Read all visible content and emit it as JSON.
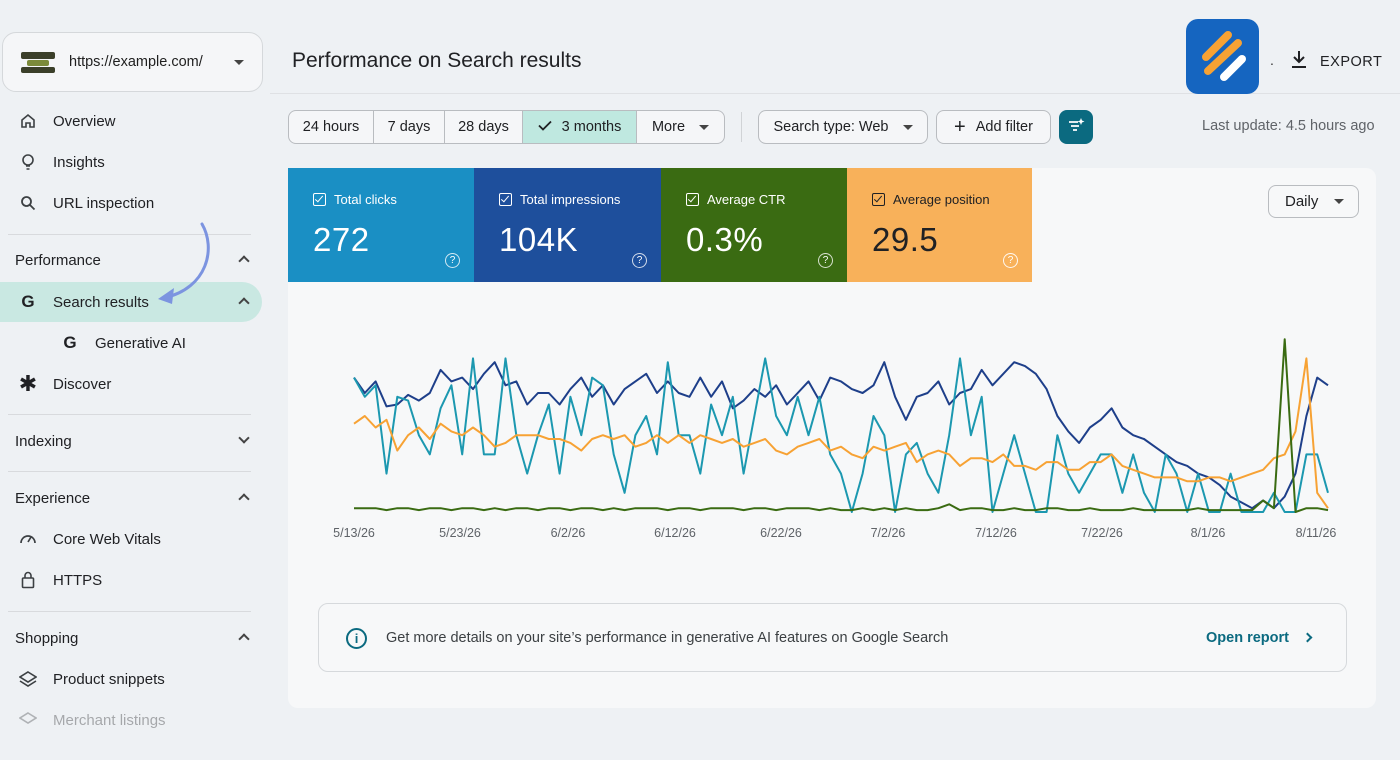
{
  "property": {
    "url": "https://example.com/"
  },
  "sidebar": {
    "items": [
      {
        "label": "Overview",
        "icon": "home-icon"
      },
      {
        "label": "Insights",
        "icon": "lightbulb-icon"
      },
      {
        "label": "URL inspection",
        "icon": "search-icon"
      }
    ],
    "sections": [
      {
        "label": "Performance",
        "expanded": true
      },
      {
        "label": "Indexing",
        "expanded": false
      },
      {
        "label": "Experience",
        "expanded": true
      },
      {
        "label": "Shopping",
        "expanded": true
      }
    ],
    "performance_items": [
      {
        "label": "Search results",
        "icon": "google-g-icon",
        "active": true
      },
      {
        "label": "Generative AI",
        "icon": "google-g-icon"
      },
      {
        "label": "Discover",
        "icon": "asterisk-icon"
      }
    ],
    "experience_items": [
      {
        "label": "Core Web Vitals",
        "icon": "gauge-icon"
      },
      {
        "label": "HTTPS",
        "icon": "lock-icon"
      }
    ],
    "shopping_items": [
      {
        "label": "Product snippets",
        "icon": "layers-icon"
      },
      {
        "label": "Merchant listings",
        "icon": "layers-icon"
      }
    ]
  },
  "header": {
    "title": "Performance on Search results",
    "export_label": "EXPORT",
    "separator": "."
  },
  "toolbar": {
    "ranges": [
      "24 hours",
      "7 days",
      "28 days",
      "3 months",
      "More"
    ],
    "selected_range": "3 months",
    "search_type": "Search type: Web",
    "add_filter": "Add filter",
    "last_update": "Last update: 4.5 hours ago"
  },
  "metrics": [
    {
      "label": "Total clicks",
      "value": "272",
      "color": "#1a8fc4"
    },
    {
      "label": "Total impressions",
      "value": "104K",
      "color": "#1e4f9c"
    },
    {
      "label": "Average CTR",
      "value": "0.3%",
      "color": "#3a6b12"
    },
    {
      "label": "Average position",
      "value": "29.5",
      "color": "#f8b15a"
    }
  ],
  "granularity": "Daily",
  "chart_data": {
    "type": "line",
    "x_ticks": [
      "5/13/26",
      "5/23/26",
      "6/2/26",
      "6/12/26",
      "6/22/26",
      "7/2/26",
      "7/12/26",
      "7/22/26",
      "8/1/26",
      "8/11/26"
    ],
    "x_range": [
      "5/13/26",
      "8/13/26"
    ],
    "grid": false,
    "y_axis_labels": false,
    "series": [
      {
        "name": "Total impressions",
        "color": "#1e3f8a",
        "values": [
          0.7,
          0.62,
          0.68,
          0.55,
          0.56,
          0.61,
          0.58,
          0.62,
          0.74,
          0.68,
          0.7,
          0.64,
          0.72,
          0.78,
          0.66,
          0.68,
          0.56,
          0.62,
          0.62,
          0.56,
          0.64,
          0.7,
          0.6,
          0.66,
          0.56,
          0.64,
          0.68,
          0.72,
          0.62,
          0.68,
          0.62,
          0.6,
          0.7,
          0.6,
          0.68,
          0.54,
          0.58,
          0.64,
          0.6,
          0.66,
          0.56,
          0.62,
          0.68,
          0.58,
          0.7,
          0.68,
          0.64,
          0.62,
          0.66,
          0.78,
          0.6,
          0.48,
          0.6,
          0.62,
          0.68,
          0.56,
          0.62,
          0.64,
          0.74,
          0.66,
          0.72,
          0.78,
          0.76,
          0.72,
          0.64,
          0.5,
          0.42,
          0.36,
          0.44,
          0.48,
          0.54,
          0.44,
          0.4,
          0.38,
          0.34,
          0.3,
          0.26,
          0.24,
          0.2,
          0.18,
          0.14,
          0.08,
          0.05,
          0.02,
          0.06,
          0.02,
          0.08,
          0.2,
          0.5,
          0.7,
          0.66
        ]
      },
      {
        "name": "Total clicks",
        "color": "#1c98b0",
        "values": [
          0.7,
          0.6,
          0.66,
          0.2,
          0.6,
          0.58,
          0.4,
          0.3,
          0.54,
          0.66,
          0.3,
          0.8,
          0.3,
          0.3,
          0.8,
          0.4,
          0.2,
          0.4,
          0.56,
          0.2,
          0.6,
          0.4,
          0.7,
          0.66,
          0.3,
          0.1,
          0.4,
          0.5,
          0.3,
          0.78,
          0.4,
          0.4,
          0.2,
          0.56,
          0.4,
          0.6,
          0.2,
          0.5,
          0.8,
          0.5,
          0.4,
          0.6,
          0.4,
          0.6,
          0.3,
          0.2,
          0.0,
          0.2,
          0.5,
          0.4,
          0.0,
          0.3,
          0.36,
          0.2,
          0.1,
          0.4,
          0.8,
          0.4,
          0.6,
          0.0,
          0.2,
          0.4,
          0.2,
          0.0,
          0.0,
          0.4,
          0.2,
          0.1,
          0.2,
          0.3,
          0.3,
          0.1,
          0.3,
          0.1,
          0.0,
          0.3,
          0.2,
          0.0,
          0.2,
          0.0,
          0.0,
          0.2,
          0.0,
          0.0,
          0.0,
          0.1,
          0.0,
          0.0,
          0.3,
          0.3,
          0.1
        ]
      },
      {
        "name": "Average position",
        "color": "#f7a234",
        "values": [
          0.46,
          0.5,
          0.44,
          0.48,
          0.32,
          0.4,
          0.44,
          0.38,
          0.46,
          0.42,
          0.4,
          0.44,
          0.4,
          0.34,
          0.36,
          0.4,
          0.4,
          0.4,
          0.38,
          0.38,
          0.36,
          0.32,
          0.38,
          0.4,
          0.38,
          0.4,
          0.34,
          0.36,
          0.4,
          0.36,
          0.4,
          0.36,
          0.4,
          0.38,
          0.36,
          0.38,
          0.34,
          0.36,
          0.38,
          0.32,
          0.3,
          0.34,
          0.36,
          0.38,
          0.32,
          0.34,
          0.3,
          0.28,
          0.34,
          0.32,
          0.34,
          0.36,
          0.26,
          0.3,
          0.32,
          0.3,
          0.24,
          0.28,
          0.28,
          0.26,
          0.3,
          0.24,
          0.24,
          0.22,
          0.26,
          0.26,
          0.22,
          0.22,
          0.26,
          0.26,
          0.3,
          0.24,
          0.22,
          0.2,
          0.18,
          0.18,
          0.18,
          0.16,
          0.16,
          0.18,
          0.18,
          0.16,
          0.18,
          0.2,
          0.22,
          0.28,
          0.3,
          0.42,
          0.8,
          0.1,
          0.02
        ]
      },
      {
        "name": "Average CTR",
        "color": "#3a6b12",
        "values": [
          0.02,
          0.02,
          0.02,
          0.01,
          0.02,
          0.02,
          0.01,
          0.02,
          0.02,
          0.01,
          0.02,
          0.02,
          0.01,
          0.02,
          0.01,
          0.02,
          0.02,
          0.01,
          0.02,
          0.02,
          0.01,
          0.02,
          0.02,
          0.01,
          0.02,
          0.01,
          0.02,
          0.02,
          0.02,
          0.01,
          0.02,
          0.02,
          0.01,
          0.02,
          0.02,
          0.02,
          0.01,
          0.02,
          0.02,
          0.01,
          0.02,
          0.02,
          0.02,
          0.01,
          0.02,
          0.01,
          0.01,
          0.02,
          0.01,
          0.02,
          0.01,
          0.02,
          0.01,
          0.01,
          0.02,
          0.04,
          0.01,
          0.02,
          0.02,
          0.01,
          0.01,
          0.02,
          0.01,
          0.01,
          0.02,
          0.02,
          0.01,
          0.01,
          0.02,
          0.01,
          0.01,
          0.01,
          0.02,
          0.01,
          0.01,
          0.01,
          0.01,
          0.01,
          0.02,
          0.01,
          0.01,
          0.01,
          0.01,
          0.01,
          0.06,
          0.02,
          0.9,
          0.0,
          0.02,
          0.02,
          0.01
        ]
      }
    ]
  },
  "info_banner": {
    "text": "Get more details on your site’s performance in generative AI features on Google Search",
    "link": "Open report",
    "icon": "info-icon"
  }
}
